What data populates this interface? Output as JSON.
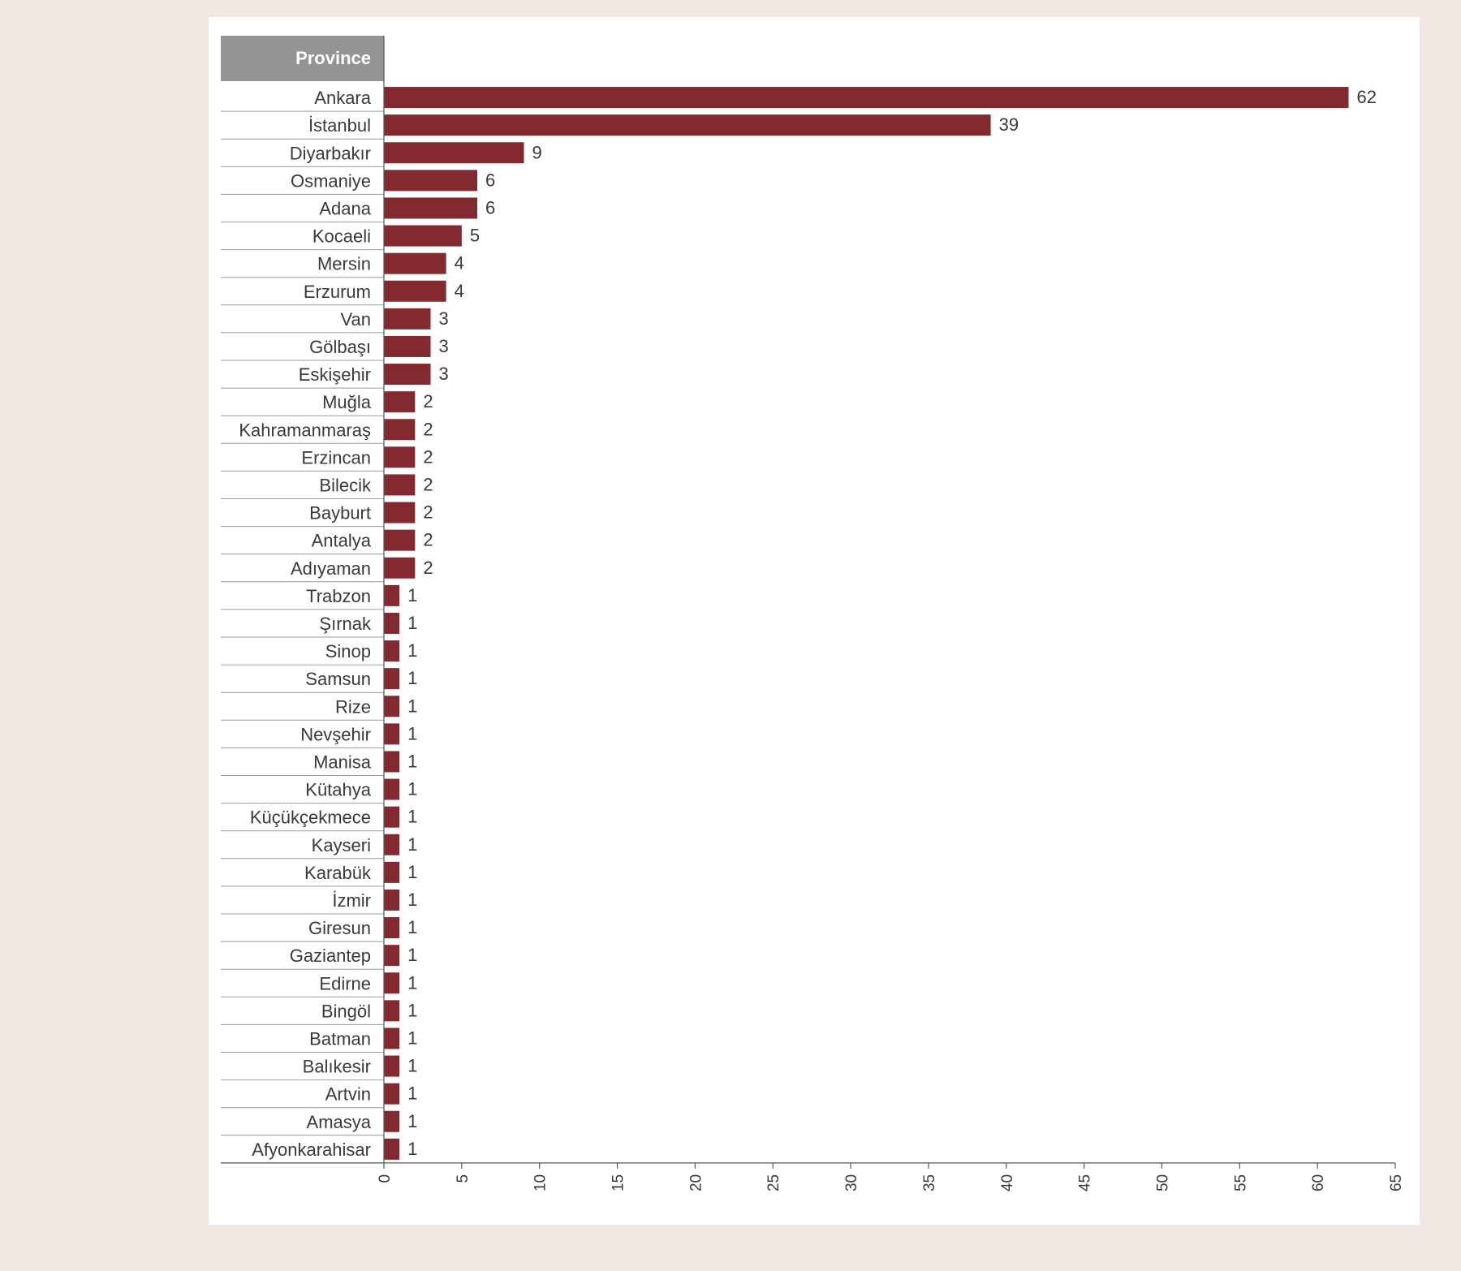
{
  "chart_data": {
    "type": "bar",
    "orientation": "horizontal",
    "category_header": "Province",
    "categories": [
      "Ankara",
      "İstanbul",
      "Diyarbakır",
      "Osmaniye",
      "Adana",
      "Kocaeli",
      "Mersin",
      "Erzurum",
      "Van",
      "Gölbaşı",
      "Eskişehir",
      "Muğla",
      "Kahramanmaraş",
      "Erzincan",
      "Bilecik",
      "Bayburt",
      "Antalya",
      "Adıyaman",
      "Trabzon",
      "Şırnak",
      "Sinop",
      "Samsun",
      "Rize",
      "Nevşehir",
      "Manisa",
      "Kütahya",
      "Küçükçekmece",
      "Kayseri",
      "Karabük",
      "İzmir",
      "Giresun",
      "Gaziantep",
      "Edirne",
      "Bingöl",
      "Batman",
      "Balıkesir",
      "Artvin",
      "Amasya",
      "Afyonkarahisar"
    ],
    "values": [
      62,
      39,
      9,
      6,
      6,
      5,
      4,
      4,
      3,
      3,
      3,
      2,
      2,
      2,
      2,
      2,
      2,
      2,
      1,
      1,
      1,
      1,
      1,
      1,
      1,
      1,
      1,
      1,
      1,
      1,
      1,
      1,
      1,
      1,
      1,
      1,
      1,
      1,
      1
    ],
    "xlim": [
      0,
      65
    ],
    "xticks": [
      "0",
      "5",
      "10",
      "15",
      "20",
      "25",
      "30",
      "35",
      "40",
      "45",
      "50",
      "55",
      "60",
      "65"
    ],
    "bar_color": "#832a31",
    "header_color": "#959394",
    "grid": false
  }
}
